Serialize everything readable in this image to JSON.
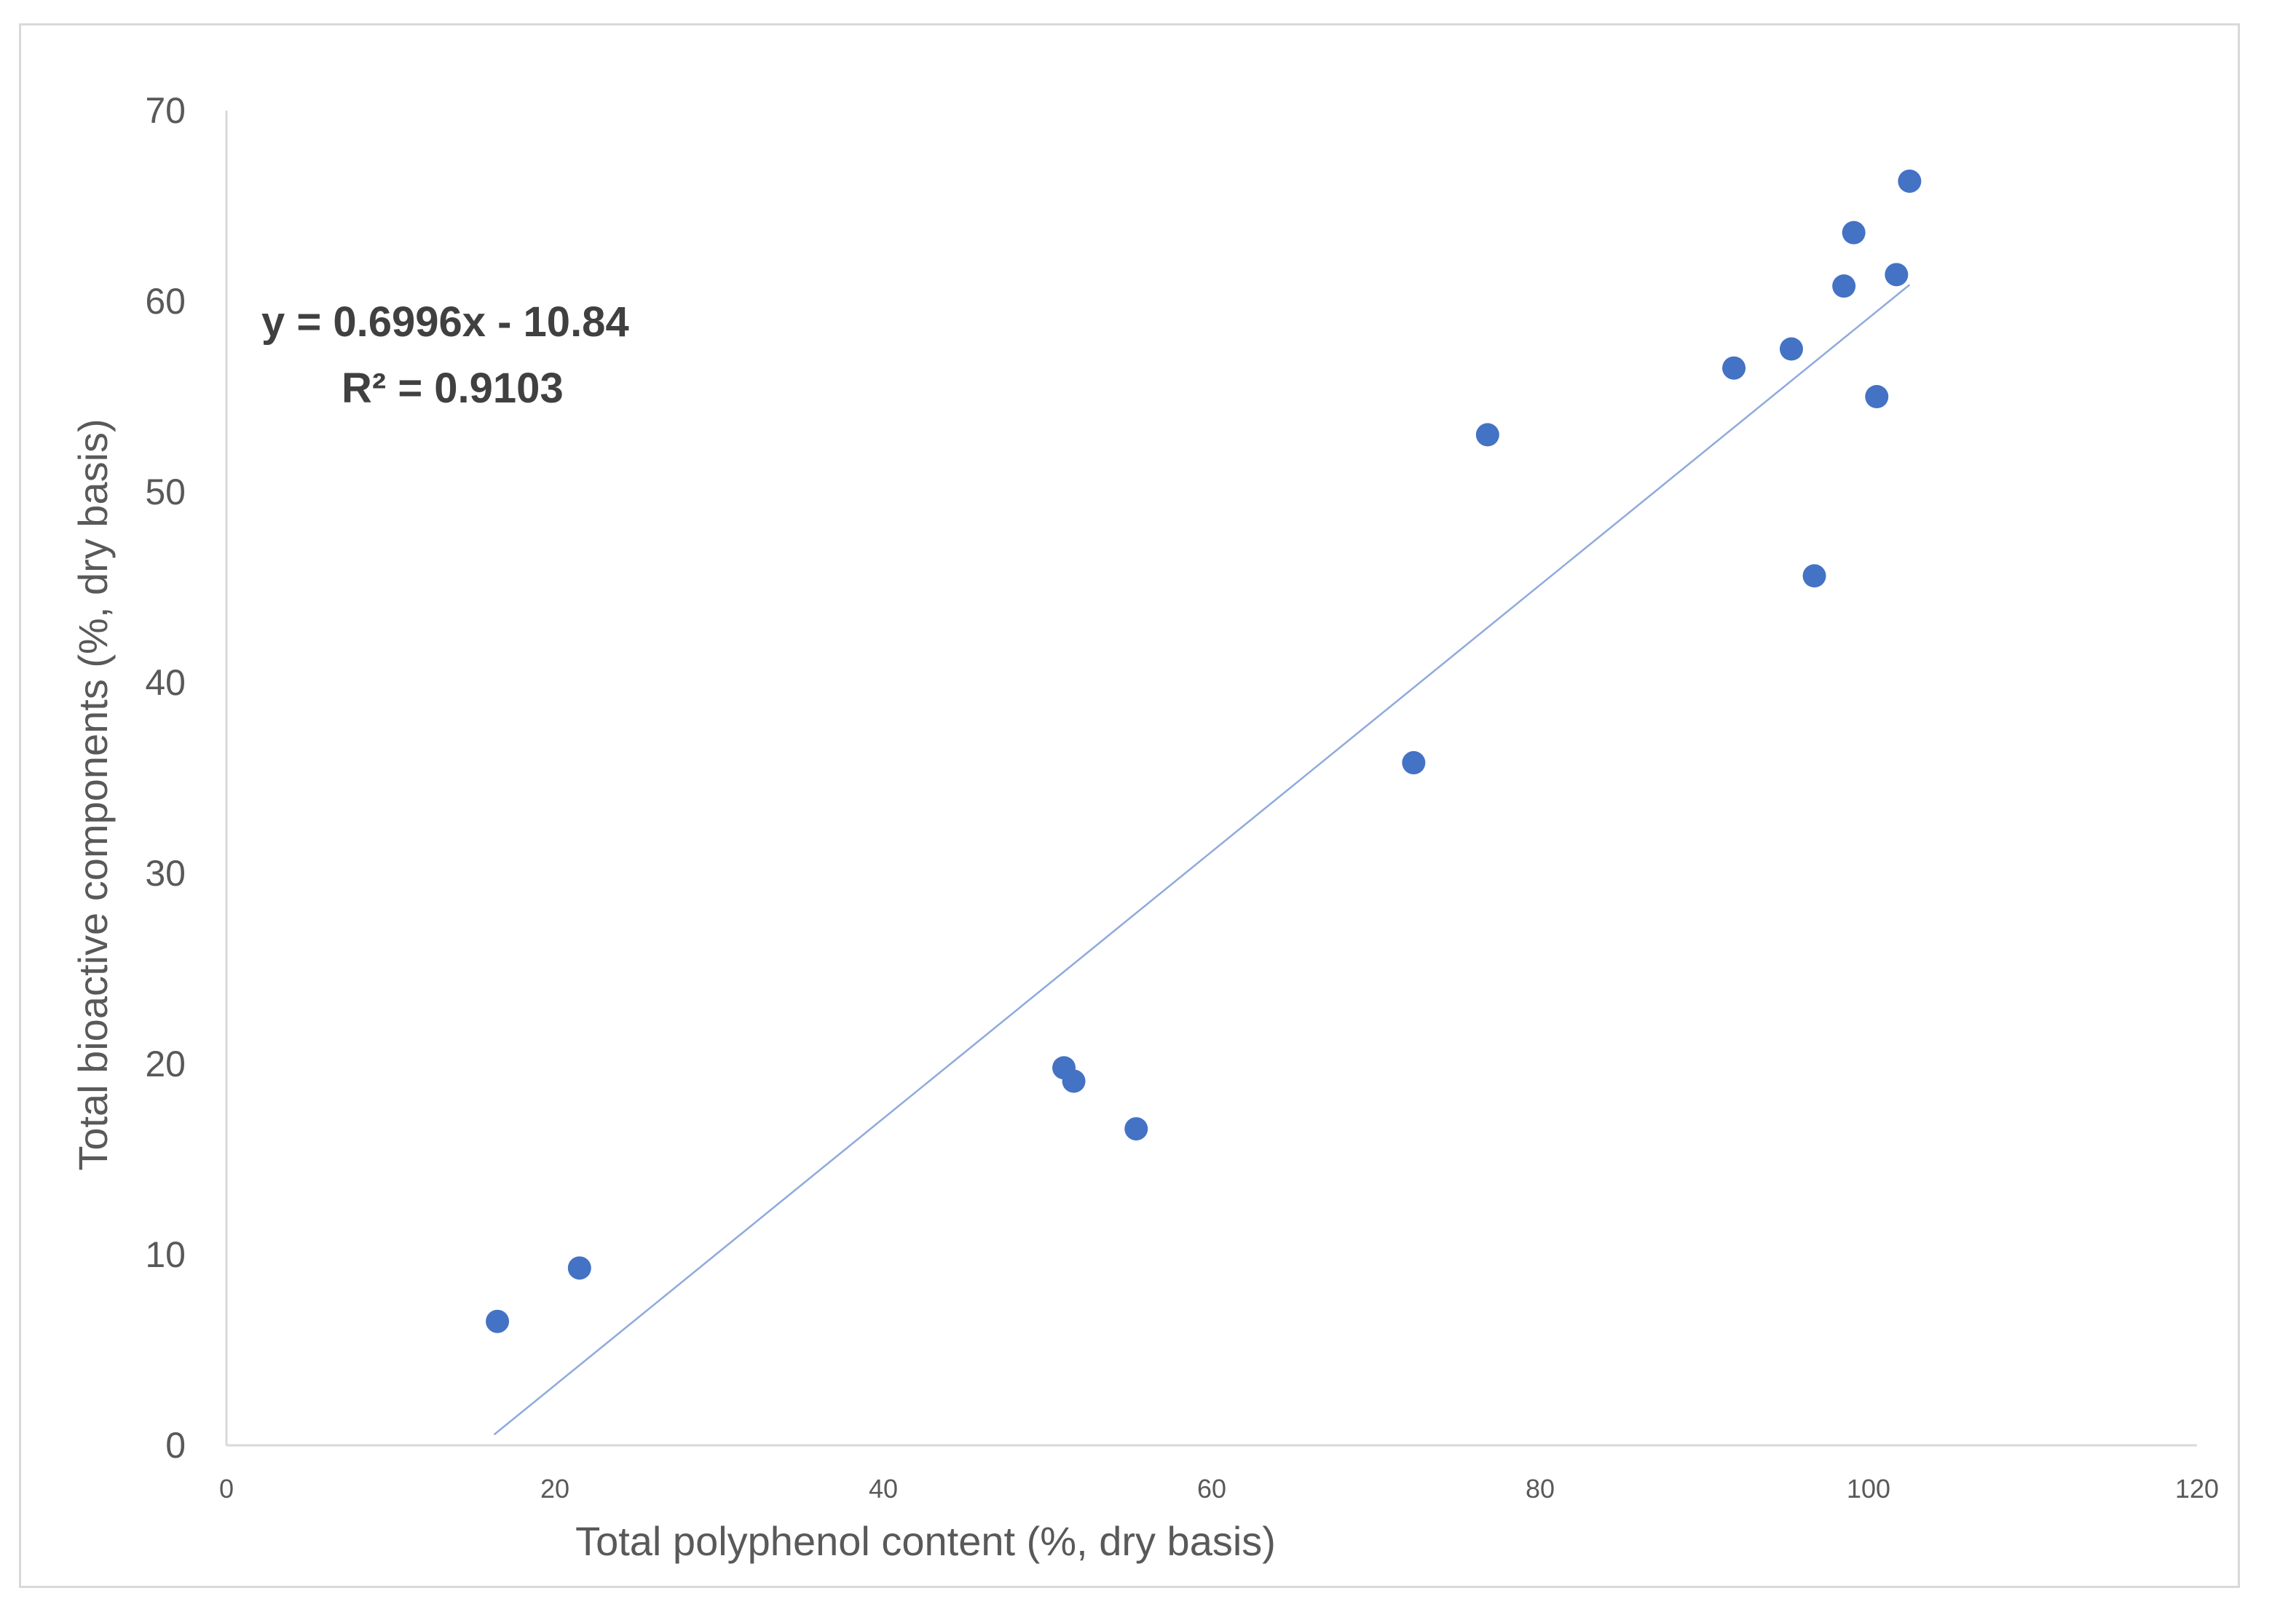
{
  "chart_data": {
    "type": "scatter",
    "xlabel": "Total polyphenol content (%, dry basis)",
    "ylabel": "Total bioactive components (%, dry basis)",
    "xlim": [
      0,
      120
    ],
    "ylim": [
      0,
      70
    ],
    "x_ticks": [
      "0",
      "20",
      "40",
      "60",
      "80",
      "100",
      "120"
    ],
    "y_ticks": [
      "0",
      "10",
      "20",
      "30",
      "40",
      "50",
      "60",
      "70"
    ],
    "grid": false,
    "points": [
      {
        "x": 16.5,
        "y": 6.5
      },
      {
        "x": 21.5,
        "y": 9.3
      },
      {
        "x": 51.0,
        "y": 19.8
      },
      {
        "x": 51.6,
        "y": 19.1
      },
      {
        "x": 55.4,
        "y": 16.6
      },
      {
        "x": 72.3,
        "y": 35.8
      },
      {
        "x": 76.8,
        "y": 53.0
      },
      {
        "x": 91.8,
        "y": 56.5
      },
      {
        "x": 95.3,
        "y": 57.5
      },
      {
        "x": 96.7,
        "y": 45.6
      },
      {
        "x": 98.5,
        "y": 60.8
      },
      {
        "x": 99.1,
        "y": 63.6
      },
      {
        "x": 100.5,
        "y": 55.0
      },
      {
        "x": 101.7,
        "y": 61.4
      },
      {
        "x": 102.5,
        "y": 66.3
      }
    ],
    "trendline": {
      "slope": 0.6996,
      "intercept": -10.84,
      "x_range": [
        16.3,
        102.5
      ]
    },
    "annotation": {
      "equation": "y = 0.6996x - 10.84",
      "r_squared": "R² = 0.9103"
    },
    "colors": {
      "points": "#4472c4",
      "trendline": "#8faadc",
      "axis": "#d9d9d9",
      "text": "#595959"
    }
  }
}
